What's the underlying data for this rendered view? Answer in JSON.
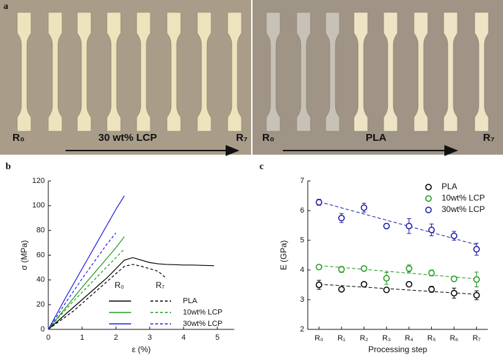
{
  "figure": {
    "panel_labels": [
      "a",
      "b",
      "c"
    ],
    "photos": [
      {
        "start": "R₀",
        "label": "30 wt% LCP",
        "end": "R₇"
      },
      {
        "start": "R₀",
        "label": "PLA",
        "end": "R₇"
      }
    ]
  },
  "chart_data": [
    {
      "type": "line",
      "x_label": "ε (%)",
      "y_label": "σ (MPa)",
      "x": [
        0,
        0.25,
        0.5,
        0.75,
        1,
        1.25,
        1.5,
        1.75,
        2,
        2.25,
        2.5,
        2.75,
        3,
        3.25,
        3.5,
        3.75,
        4,
        4.25,
        4.5,
        4.75,
        4.9
      ],
      "xlim": [
        0,
        5.5
      ],
      "xticks": [
        0,
        1,
        2,
        3,
        4,
        5
      ],
      "ylim": [
        0,
        120
      ],
      "yticks": [
        0,
        20,
        40,
        60,
        80,
        100,
        120
      ],
      "legend": {
        "columns": [
          "R₀",
          "R₇"
        ]
      },
      "series": [
        {
          "name": "PLA",
          "color": "#000000",
          "values": [
            0,
            6,
            12,
            18,
            24,
            30,
            36,
            42,
            49,
            56,
            58,
            56,
            54,
            53,
            52.5,
            52.3,
            52,
            52,
            51.8,
            51.6,
            51.5
          ],
          "r7_values": [
            0,
            5,
            10,
            15,
            21,
            27,
            33,
            39,
            45,
            51,
            52.5,
            51,
            49,
            47,
            41,
            null,
            null,
            null,
            null,
            null,
            null
          ]
        },
        {
          "name": "10wt% LCP",
          "color": "#1f9a1f",
          "values": [
            0,
            8.5,
            17,
            25.5,
            34,
            42,
            50,
            58,
            66,
            75,
            null,
            null,
            null,
            null,
            null,
            null,
            null,
            null,
            null,
            null,
            null
          ],
          "r7_values": [
            0,
            8,
            15.5,
            23,
            30,
            37,
            44,
            51,
            58,
            65,
            null,
            null,
            null,
            null,
            null,
            null,
            null,
            null,
            null,
            null,
            null
          ]
        },
        {
          "name": "30wt% LCP",
          "color": "#2020e0",
          "values": [
            0,
            12.5,
            25,
            37,
            49,
            61,
            73,
            85,
            97,
            108,
            null,
            null,
            null,
            null,
            null,
            null,
            null,
            null,
            null,
            null,
            null
          ],
          "r7_values": [
            0,
            10.5,
            21,
            31,
            41,
            50.5,
            60,
            69.5,
            78,
            null,
            null,
            null,
            null,
            null,
            null,
            null,
            null,
            null,
            null,
            null,
            null
          ]
        }
      ]
    },
    {
      "type": "scatter",
      "x_label": "Processing step",
      "y_label": "E (GPa)",
      "categories": [
        "R₀",
        "R₁",
        "R₂",
        "R₃",
        "R₄",
        "R₅",
        "R₆",
        "R₇"
      ],
      "ylim": [
        2,
        7
      ],
      "yticks": [
        2,
        3,
        4,
        5,
        6,
        7
      ],
      "series": [
        {
          "name": "PLA",
          "color": "#000000",
          "values": [
            3.5,
            3.35,
            3.52,
            3.33,
            3.52,
            3.35,
            3.22,
            3.15
          ],
          "errors": [
            0.15,
            0.07,
            0.05,
            0.05,
            0.05,
            0.1,
            0.17,
            0.15
          ],
          "trend": [
            3.52,
            3.18
          ]
        },
        {
          "name": "10wt% LCP",
          "color": "#1f9a1f",
          "values": [
            4.1,
            4.02,
            4.05,
            3.72,
            4.05,
            3.9,
            3.7,
            3.68
          ],
          "errors": [
            0.05,
            0.1,
            0.08,
            0.2,
            0.12,
            0.1,
            0.05,
            0.25
          ],
          "trend": [
            4.15,
            3.7
          ]
        },
        {
          "name": "30wt% LCP",
          "color": "#1a1aa8",
          "values": [
            6.28,
            5.75,
            6.1,
            5.48,
            5.48,
            5.35,
            5.15,
            4.7
          ],
          "errors": [
            0.1,
            0.15,
            0.15,
            0.08,
            0.25,
            0.2,
            0.15,
            0.2
          ],
          "trend": [
            6.3,
            4.85
          ]
        }
      ]
    }
  ]
}
